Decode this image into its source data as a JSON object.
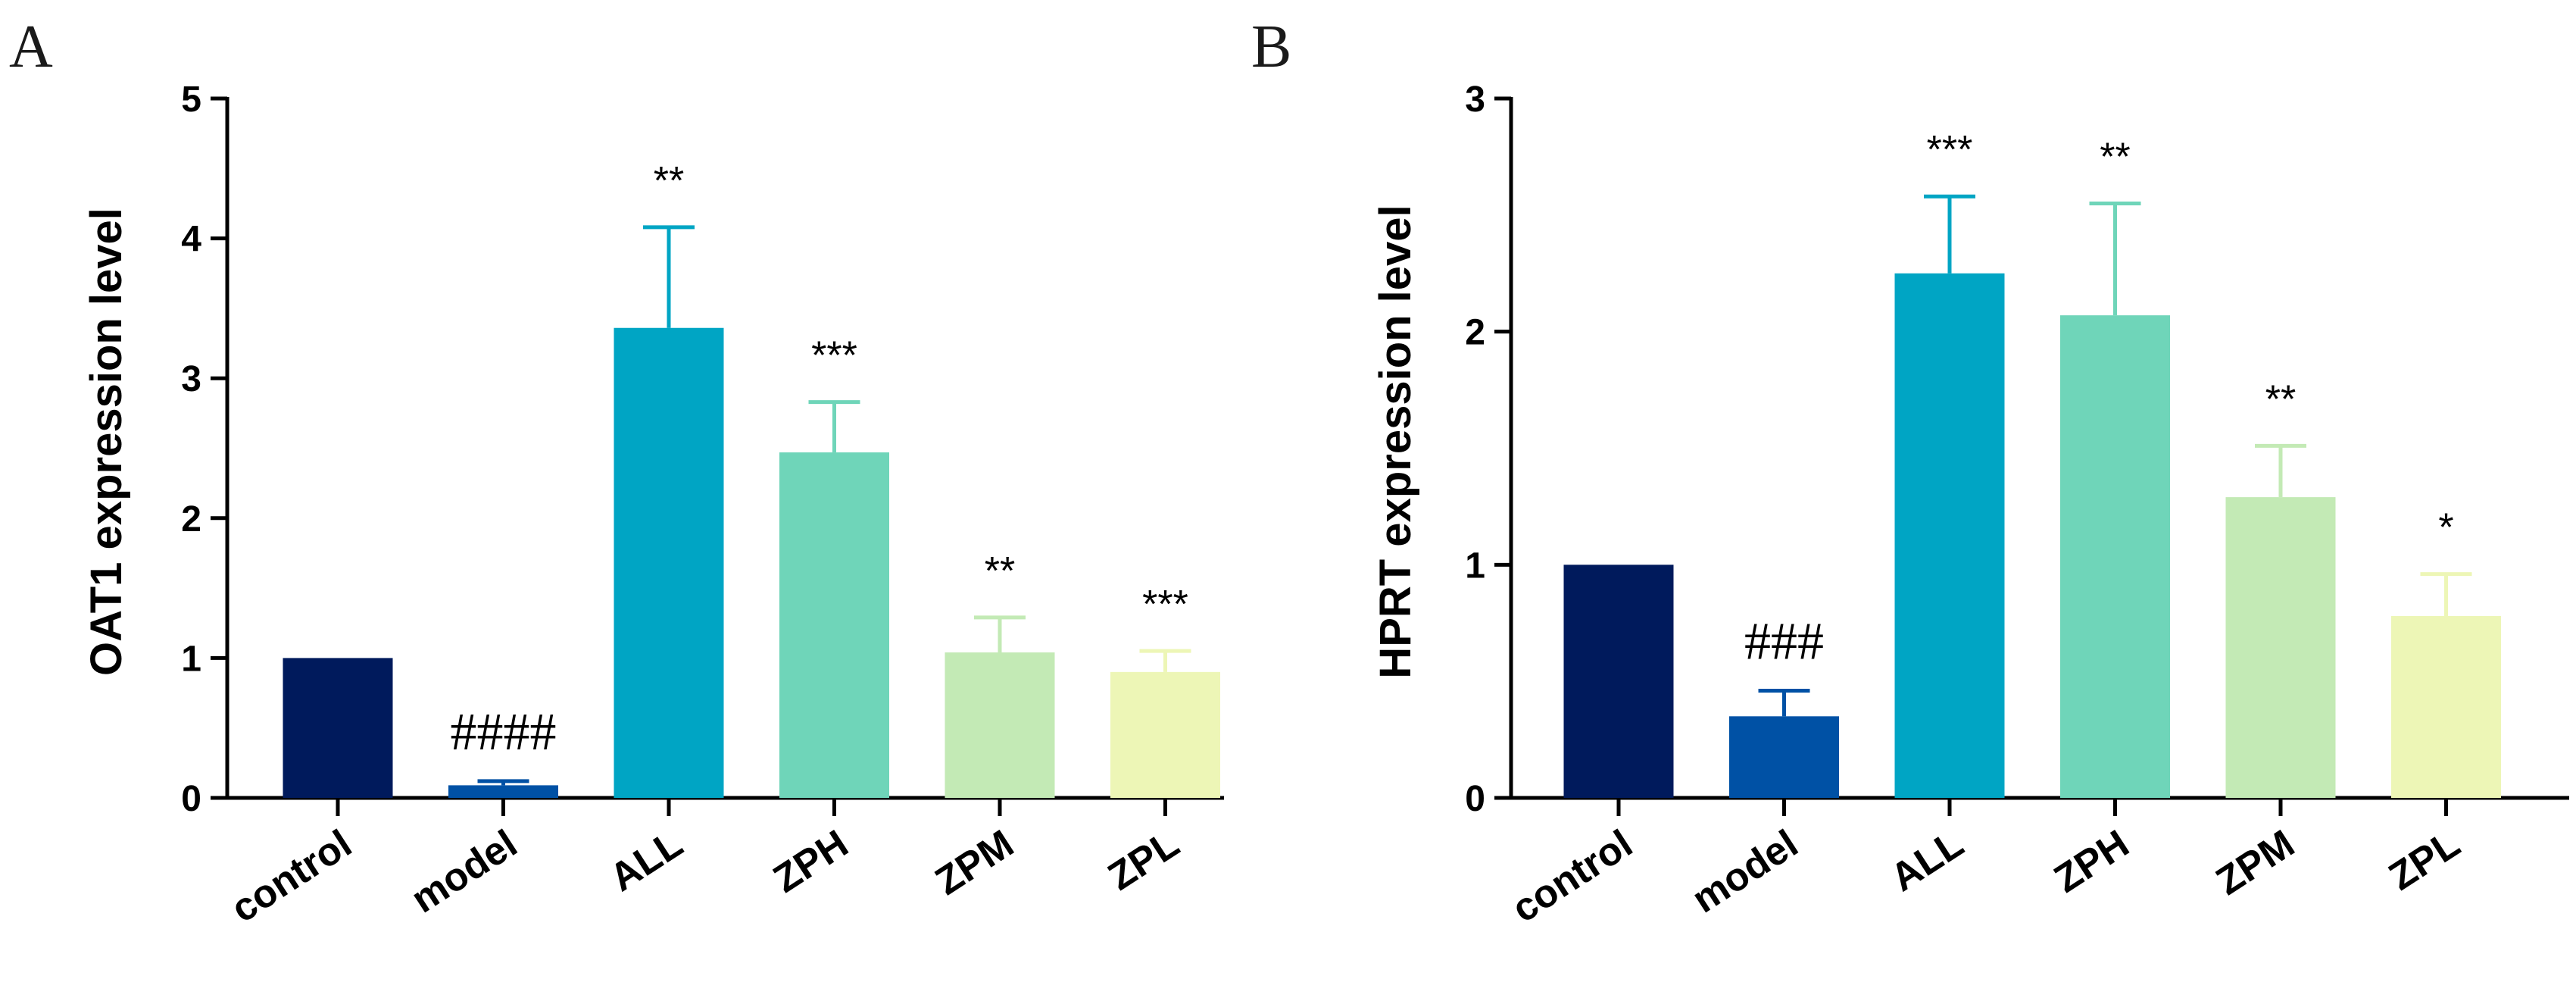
{
  "chart_data": [
    {
      "panel": "A",
      "type": "bar",
      "title": "",
      "xlabel": "",
      "ylabel": "OAT1 expression level",
      "ylim": [
        0,
        5
      ],
      "yticks": [
        "0",
        "1",
        "2",
        "3",
        "4",
        "5"
      ],
      "categories": [
        "control",
        "model",
        "ALL",
        "ZPH",
        "ZPM",
        "ZPL"
      ],
      "values": [
        1.0,
        0.09,
        3.36,
        2.47,
        1.04,
        0.9
      ],
      "errors": [
        0.0,
        0.03,
        0.72,
        0.36,
        0.25,
        0.15
      ],
      "annotations": [
        "",
        "####",
        "**",
        "***",
        "**",
        "***"
      ],
      "colors": [
        "#001a5c",
        "#0051a5",
        "#00a5c4",
        "#6fd5b9",
        "#c3eab5",
        "#edf6b6"
      ]
    },
    {
      "panel": "B",
      "type": "bar",
      "title": "",
      "xlabel": "",
      "ylabel": "HPRT expression level",
      "ylim": [
        0,
        3
      ],
      "yticks": [
        "0",
        "1",
        "2",
        "3"
      ],
      "categories": [
        "control",
        "model",
        "ALL",
        "ZPH",
        "ZPM",
        "ZPL"
      ],
      "values": [
        1.0,
        0.35,
        2.25,
        2.07,
        1.29,
        0.78
      ],
      "errors": [
        0.0,
        0.11,
        0.33,
        0.48,
        0.22,
        0.18
      ],
      "annotations": [
        "",
        "###",
        "***",
        "**",
        "**",
        "*"
      ],
      "colors": [
        "#001a5c",
        "#0051a5",
        "#00a5c4",
        "#6fd5b9",
        "#c3eab5",
        "#edf6b6"
      ]
    }
  ]
}
